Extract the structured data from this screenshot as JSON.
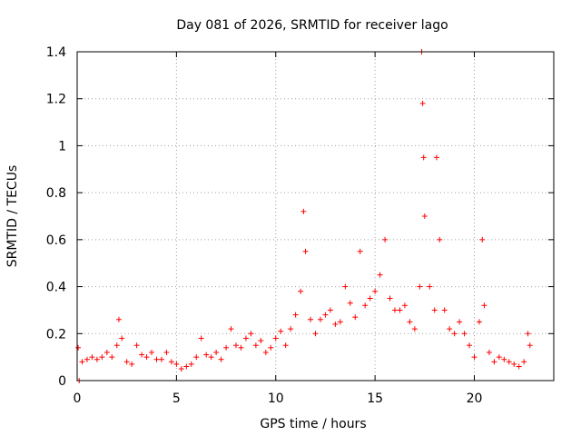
{
  "chart_data": {
    "type": "scatter",
    "title": "Day 081 of 2026, SRMTID for receiver lago",
    "xlabel": "GPS time / hours",
    "ylabel": "SRMTID / TECUs",
    "xlim": [
      0,
      24
    ],
    "ylim": [
      0,
      1.4
    ],
    "xticks": [
      0,
      5,
      10,
      15,
      20
    ],
    "yticks": [
      0,
      0.2,
      0.4,
      0.6,
      0.8,
      1,
      1.2,
      1.4
    ],
    "xtick_labels": [
      "0",
      "5",
      "10",
      "15",
      "20"
    ],
    "ytick_labels": [
      "0",
      "0.2",
      "0.4",
      "0.6",
      "0.8",
      "1",
      "1.2",
      "1.4"
    ],
    "grid": true,
    "marker": "+",
    "color": "#ff0000",
    "series": [
      {
        "name": "SRMTID",
        "trend_description": "approximate envelope of the point cloud, sampled every 0.25 h",
        "points": [
          [
            0.05,
            0.14
          ],
          [
            0.1,
            0.0
          ],
          [
            0.25,
            0.08
          ],
          [
            0.5,
            0.09
          ],
          [
            0.75,
            0.1
          ],
          [
            1.0,
            0.09
          ],
          [
            1.25,
            0.1
          ],
          [
            1.5,
            0.12
          ],
          [
            1.75,
            0.1
          ],
          [
            2.0,
            0.15
          ],
          [
            2.1,
            0.26
          ],
          [
            2.25,
            0.18
          ],
          [
            2.5,
            0.08
          ],
          [
            2.75,
            0.07
          ],
          [
            3.0,
            0.15
          ],
          [
            3.25,
            0.11
          ],
          [
            3.5,
            0.1
          ],
          [
            3.75,
            0.12
          ],
          [
            4.0,
            0.09
          ],
          [
            4.25,
            0.09
          ],
          [
            4.5,
            0.12
          ],
          [
            4.75,
            0.08
          ],
          [
            5.0,
            0.07
          ],
          [
            5.25,
            0.05
          ],
          [
            5.5,
            0.06
          ],
          [
            5.75,
            0.07
          ],
          [
            6.0,
            0.1
          ],
          [
            6.25,
            0.18
          ],
          [
            6.5,
            0.11
          ],
          [
            6.75,
            0.1
          ],
          [
            7.0,
            0.12
          ],
          [
            7.25,
            0.09
          ],
          [
            7.5,
            0.14
          ],
          [
            7.75,
            0.22
          ],
          [
            8.0,
            0.15
          ],
          [
            8.25,
            0.14
          ],
          [
            8.5,
            0.18
          ],
          [
            8.75,
            0.2
          ],
          [
            9.0,
            0.15
          ],
          [
            9.25,
            0.17
          ],
          [
            9.5,
            0.12
          ],
          [
            9.75,
            0.14
          ],
          [
            10.0,
            0.18
          ],
          [
            10.25,
            0.21
          ],
          [
            10.5,
            0.15
          ],
          [
            10.75,
            0.22
          ],
          [
            11.0,
            0.28
          ],
          [
            11.25,
            0.38
          ],
          [
            11.4,
            0.72
          ],
          [
            11.5,
            0.55
          ],
          [
            11.75,
            0.26
          ],
          [
            12.0,
            0.2
          ],
          [
            12.25,
            0.26
          ],
          [
            12.5,
            0.28
          ],
          [
            12.75,
            0.3
          ],
          [
            13.0,
            0.24
          ],
          [
            13.25,
            0.25
          ],
          [
            13.5,
            0.4
          ],
          [
            13.75,
            0.33
          ],
          [
            14.0,
            0.27
          ],
          [
            14.25,
            0.55
          ],
          [
            14.5,
            0.32
          ],
          [
            14.75,
            0.35
          ],
          [
            15.0,
            0.38
          ],
          [
            15.25,
            0.45
          ],
          [
            15.5,
            0.6
          ],
          [
            15.75,
            0.35
          ],
          [
            16.0,
            0.3
          ],
          [
            16.25,
            0.3
          ],
          [
            16.5,
            0.32
          ],
          [
            16.75,
            0.25
          ],
          [
            17.0,
            0.22
          ],
          [
            17.25,
            0.4
          ],
          [
            17.35,
            1.4
          ],
          [
            17.4,
            1.18
          ],
          [
            17.45,
            0.95
          ],
          [
            17.5,
            0.7
          ],
          [
            17.75,
            0.4
          ],
          [
            18.0,
            0.3
          ],
          [
            18.1,
            0.95
          ],
          [
            18.25,
            0.6
          ],
          [
            18.5,
            0.3
          ],
          [
            18.75,
            0.22
          ],
          [
            19.0,
            0.2
          ],
          [
            19.25,
            0.25
          ],
          [
            19.5,
            0.2
          ],
          [
            19.75,
            0.15
          ],
          [
            20.0,
            0.1
          ],
          [
            20.25,
            0.25
          ],
          [
            20.4,
            0.6
          ],
          [
            20.5,
            0.32
          ],
          [
            20.75,
            0.12
          ],
          [
            21.0,
            0.08
          ],
          [
            21.25,
            0.1
          ],
          [
            21.5,
            0.09
          ],
          [
            21.75,
            0.08
          ],
          [
            22.0,
            0.07
          ],
          [
            22.25,
            0.06
          ],
          [
            22.5,
            0.08
          ],
          [
            22.7,
            0.2
          ],
          [
            22.8,
            0.15
          ]
        ]
      }
    ]
  }
}
